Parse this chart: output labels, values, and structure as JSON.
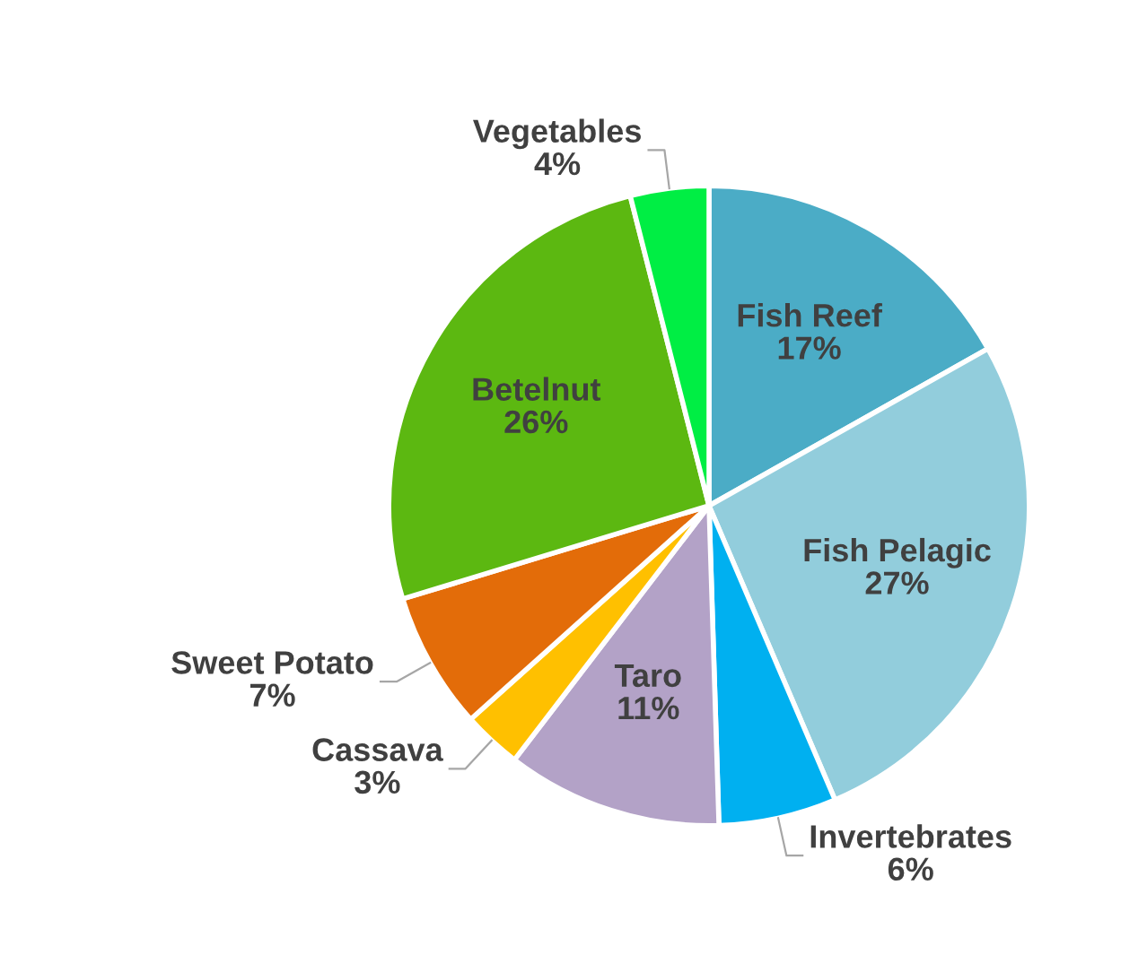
{
  "chart_data": {
    "type": "pie",
    "categories": [
      "Fish Reef",
      "Fish Pelagic",
      "Invertebrates",
      "Taro",
      "Cassava",
      "Sweet Potato",
      "Betelnut",
      "Vegetables"
    ],
    "values": [
      17,
      27,
      6,
      11,
      3,
      7,
      26,
      4
    ],
    "colors": [
      "#4bacc6",
      "#92cddc",
      "#00b0f0",
      "#b3a2c7",
      "#ffc000",
      "#e36c09",
      "#5cb811",
      "#00ee44"
    ],
    "value_labels": [
      "17%",
      "27%",
      "6%",
      "11%",
      "3%",
      "7%",
      "26%",
      "4%"
    ],
    "legend": false
  }
}
